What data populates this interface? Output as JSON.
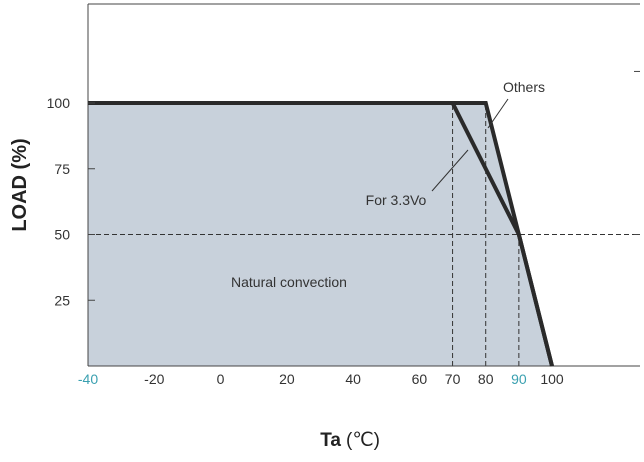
{
  "chart_data": {
    "type": "area",
    "xlabel": "Ta",
    "xlabel_unit": "(℃)",
    "ylabel": "LOAD (%)",
    "xlim": [
      -40,
      100
    ],
    "ylim": [
      0,
      125
    ],
    "x_ticks": [
      -40,
      -20,
      0,
      20,
      40,
      60,
      70,
      80,
      90,
      100
    ],
    "x_ticks_highlighted": [
      -40,
      90
    ],
    "y_ticks": [
      25,
      50,
      75,
      100
    ],
    "grid": false,
    "series": [
      {
        "name": "Others",
        "x": [
          -40,
          80,
          90,
          100
        ],
        "y": [
          100,
          100,
          50,
          0
        ]
      },
      {
        "name": "For 3.3Vo",
        "x": [
          -40,
          70,
          90,
          100
        ],
        "y": [
          100,
          100,
          50,
          0
        ]
      }
    ],
    "reference_lines": [
      {
        "orientation": "vertical",
        "x": 70,
        "y_to": 100
      },
      {
        "orientation": "vertical",
        "x": 80,
        "y_to": 100
      },
      {
        "orientation": "vertical",
        "x": 90,
        "y_to": 50
      },
      {
        "orientation": "horizontal",
        "y": 50
      }
    ],
    "annotations": [
      "Natural convection"
    ],
    "colors": {
      "fill": "#c8d1db",
      "line": "#2a2a2a",
      "highlight_tick": "#3aa0b0",
      "frame": "#444444"
    }
  }
}
